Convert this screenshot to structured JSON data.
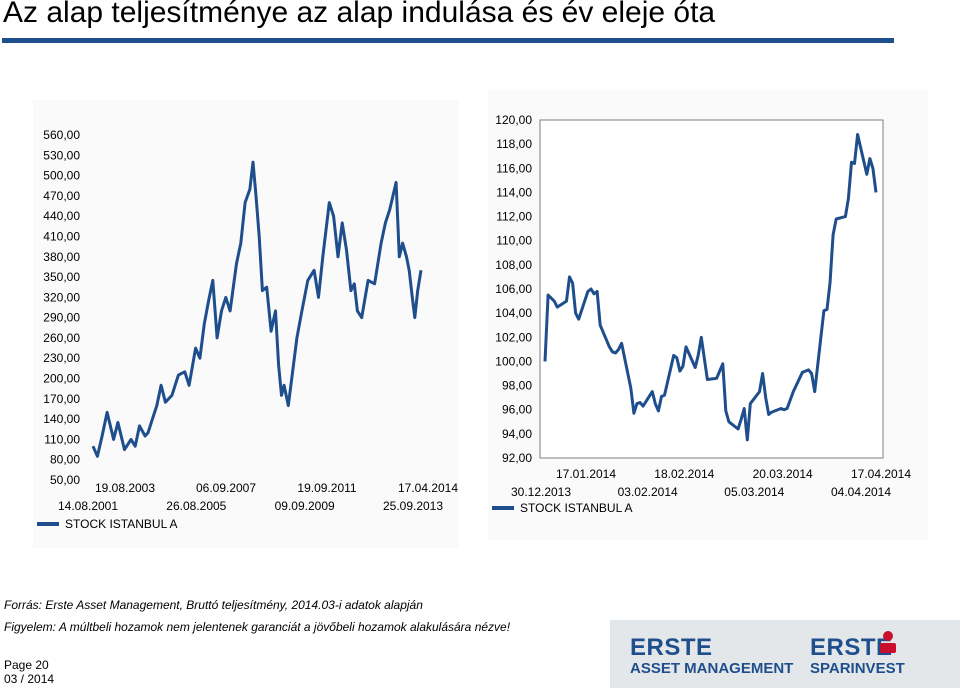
{
  "page_title": "Az alap teljesítménye az alap indulása és év eleje óta",
  "colors": {
    "accent": "#1f4e8c",
    "line": "#1f4e8c"
  },
  "footnote_source": "Forrás: Erste Asset Management, Bruttó teljesítmény, 2014.03-i adatok alapján",
  "footnote_disclaimer": "Figyelem: A múltbeli hozamok nem jelentenek garanciát a jövőbeli hozamok alakulására nézve!",
  "page_label": "Page 20",
  "page_date": "03 / 2014",
  "logo": {
    "left_top": "ERSTE",
    "left_bottom": "ASSET MANAGEMENT",
    "right_top": "ERSTE",
    "right_bottom": "SPARINVEST"
  },
  "chart_data": [
    {
      "type": "line",
      "title": "",
      "legend": "STOCK ISTANBUL A",
      "legend_position": "bottom-left",
      "grid": false,
      "ylim": [
        50,
        560
      ],
      "y_ticks": [
        "560,00",
        "530,00",
        "500,00",
        "470,00",
        "440,00",
        "410,00",
        "380,00",
        "350,00",
        "320,00",
        "290,00",
        "260,00",
        "230,00",
        "200,00",
        "170,00",
        "140,00",
        "110,00",
        "80,00",
        "50,00"
      ],
      "x_ticks_upper": [
        "19.08.2003",
        "06.09.2007",
        "19.09.2011",
        "17.04.2014"
      ],
      "x_ticks_lower": [
        "14.08.2001",
        "26.08.2005",
        "09.09.2009",
        "25.09.2013"
      ],
      "series": [
        {
          "name": "STOCK ISTANBUL A",
          "points": [
            [
              "2001-08-14",
              100
            ],
            [
              "2001-10-15",
              85
            ],
            [
              "2001-12-20",
              115
            ],
            [
              "2002-03-01",
              150
            ],
            [
              "2002-06-01",
              110
            ],
            [
              "2002-08-01",
              135
            ],
            [
              "2002-11-01",
              95
            ],
            [
              "2003-02-01",
              110
            ],
            [
              "2003-04-01",
              100
            ],
            [
              "2003-06-01",
              130
            ],
            [
              "2003-08-19",
              115
            ],
            [
              "2003-10-01",
              120
            ],
            [
              "2003-12-01",
              140
            ],
            [
              "2004-02-01",
              160
            ],
            [
              "2004-04-01",
              190
            ],
            [
              "2004-06-01",
              165
            ],
            [
              "2004-09-01",
              175
            ],
            [
              "2004-12-01",
              205
            ],
            [
              "2005-03-01",
              210
            ],
            [
              "2005-05-01",
              190
            ],
            [
              "2005-08-01",
              245
            ],
            [
              "2005-10-01",
              230
            ],
            [
              "2005-12-01",
              280
            ],
            [
              "2006-02-01",
              315
            ],
            [
              "2006-04-01",
              345
            ],
            [
              "2006-06-01",
              260
            ],
            [
              "2006-08-01",
              300
            ],
            [
              "2006-10-01",
              320
            ],
            [
              "2006-12-01",
              300
            ],
            [
              "2007-03-01",
              370
            ],
            [
              "2007-05-01",
              400
            ],
            [
              "2007-07-01",
              460
            ],
            [
              "2007-09-06",
              480
            ],
            [
              "2007-10-20",
              520
            ],
            [
              "2007-12-01",
              470
            ],
            [
              "2008-01-15",
              410
            ],
            [
              "2008-03-01",
              330
            ],
            [
              "2008-05-01",
              335
            ],
            [
              "2008-07-01",
              270
            ],
            [
              "2008-09-01",
              300
            ],
            [
              "2008-10-15",
              220
            ],
            [
              "2008-11-25",
              175
            ],
            [
              "2009-01-01",
              190
            ],
            [
              "2009-03-01",
              160
            ],
            [
              "2009-05-01",
              210
            ],
            [
              "2009-07-01",
              260
            ],
            [
              "2009-09-09",
              300
            ],
            [
              "2009-12-01",
              345
            ],
            [
              "2010-03-01",
              360
            ],
            [
              "2010-05-01",
              320
            ],
            [
              "2010-07-01",
              380
            ],
            [
              "2010-10-01",
              460
            ],
            [
              "2010-12-01",
              440
            ],
            [
              "2011-02-01",
              380
            ],
            [
              "2011-04-01",
              430
            ],
            [
              "2011-06-01",
              390
            ],
            [
              "2011-08-01",
              330
            ],
            [
              "2011-09-19",
              340
            ],
            [
              "2011-11-01",
              300
            ],
            [
              "2012-01-01",
              290
            ],
            [
              "2012-04-01",
              345
            ],
            [
              "2012-07-01",
              340
            ],
            [
              "2012-10-01",
              400
            ],
            [
              "2012-12-01",
              430
            ],
            [
              "2013-02-01",
              450
            ],
            [
              "2013-05-01",
              490
            ],
            [
              "2013-06-15",
              380
            ],
            [
              "2013-08-01",
              400
            ],
            [
              "2013-09-25",
              380
            ],
            [
              "2013-11-01",
              360
            ],
            [
              "2013-12-15",
              320
            ],
            [
              "2014-01-20",
              290
            ],
            [
              "2014-03-01",
              330
            ],
            [
              "2014-04-17",
              360
            ]
          ]
        }
      ]
    },
    {
      "type": "line",
      "title": "",
      "legend": "STOCK ISTANBUL A",
      "legend_position": "bottom-left",
      "grid": false,
      "ylim": [
        92,
        120
      ],
      "y_ticks": [
        "120,00",
        "118,00",
        "116,00",
        "114,00",
        "112,00",
        "110,00",
        "108,00",
        "106,00",
        "104,00",
        "102,00",
        "100,00",
        "98,00",
        "96,00",
        "94,00",
        "92,00"
      ],
      "x_ticks_upper": [
        "17.01.2014",
        "18.02.2014",
        "20.03.2014",
        "17.04.2014"
      ],
      "x_ticks_lower": [
        "30.12.2013",
        "03.02.2014",
        "05.03.2014",
        "04.04.2014"
      ],
      "series": [
        {
          "name": "STOCK ISTANBUL A",
          "points": [
            [
              "2013-12-30",
              100
            ],
            [
              "2013-12-31",
              105.5
            ],
            [
              "2014-01-02",
              105
            ],
            [
              "2014-01-03",
              104.5
            ],
            [
              "2014-01-06",
              105
            ],
            [
              "2014-01-07",
              107
            ],
            [
              "2014-01-08",
              106.5
            ],
            [
              "2014-01-09",
              104
            ],
            [
              "2014-01-10",
              103.5
            ],
            [
              "2014-01-13",
              105.8
            ],
            [
              "2014-01-14",
              106
            ],
            [
              "2014-01-15",
              105.6
            ],
            [
              "2014-01-16",
              105.8
            ],
            [
              "2014-01-17",
              103
            ],
            [
              "2014-01-20",
              101.2
            ],
            [
              "2014-01-21",
              100.8
            ],
            [
              "2014-01-22",
              100.7
            ],
            [
              "2014-01-23",
              101
            ],
            [
              "2014-01-24",
              101.5
            ],
            [
              "2014-01-27",
              97.8
            ],
            [
              "2014-01-28",
              95.7
            ],
            [
              "2014-01-29",
              96.5
            ],
            [
              "2014-01-30",
              96.6
            ],
            [
              "2014-01-31",
              96.3
            ],
            [
              "2014-02-03",
              97.5
            ],
            [
              "2014-02-04",
              96.5
            ],
            [
              "2014-02-05",
              95.9
            ],
            [
              "2014-02-06",
              97.1
            ],
            [
              "2014-02-07",
              97.2
            ],
            [
              "2014-02-10",
              100.5
            ],
            [
              "2014-02-11",
              100.3
            ],
            [
              "2014-02-12",
              99.2
            ],
            [
              "2014-02-13",
              99.6
            ],
            [
              "2014-02-14",
              101.2
            ],
            [
              "2014-02-17",
              99.5
            ],
            [
              "2014-02-18",
              100.5
            ],
            [
              "2014-02-19",
              102
            ],
            [
              "2014-02-20",
              100.2
            ],
            [
              "2014-02-21",
              98.5
            ],
            [
              "2014-02-24",
              98.6
            ],
            [
              "2014-02-25",
              99.2
            ],
            [
              "2014-02-26",
              99.8
            ],
            [
              "2014-02-27",
              95.9
            ],
            [
              "2014-02-28",
              95
            ],
            [
              "2014-03-03",
              94.4
            ],
            [
              "2014-03-04",
              95.2
            ],
            [
              "2014-03-05",
              96.1
            ],
            [
              "2014-03-06",
              93.5
            ],
            [
              "2014-03-07",
              96.5
            ],
            [
              "2014-03-10",
              97.5
            ],
            [
              "2014-03-11",
              99
            ],
            [
              "2014-03-12",
              97
            ],
            [
              "2014-03-13",
              95.6
            ],
            [
              "2014-03-14",
              95.8
            ],
            [
              "2014-03-17",
              96.1
            ],
            [
              "2014-03-18",
              96
            ],
            [
              "2014-03-19",
              96.1
            ],
            [
              "2014-03-20",
              96.8
            ],
            [
              "2014-03-21",
              97.5
            ],
            [
              "2014-03-24",
              99.1
            ],
            [
              "2014-03-25",
              99.2
            ],
            [
              "2014-03-26",
              99.3
            ],
            [
              "2014-03-27",
              99
            ],
            [
              "2014-03-28",
              97.5
            ],
            [
              "2014-03-31",
              104.2
            ],
            [
              "2014-04-01",
              104.3
            ],
            [
              "2014-04-02",
              106.5
            ],
            [
              "2014-04-03",
              110.5
            ],
            [
              "2014-04-04",
              111.8
            ],
            [
              "2014-04-07",
              112
            ],
            [
              "2014-04-08",
              113.5
            ],
            [
              "2014-04-09",
              116.5
            ],
            [
              "2014-04-10",
              116.4
            ],
            [
              "2014-04-11",
              118.8
            ],
            [
              "2014-04-14",
              115.5
            ],
            [
              "2014-04-15",
              116.8
            ],
            [
              "2014-04-16",
              116
            ],
            [
              "2014-04-17",
              114
            ]
          ]
        }
      ]
    }
  ]
}
